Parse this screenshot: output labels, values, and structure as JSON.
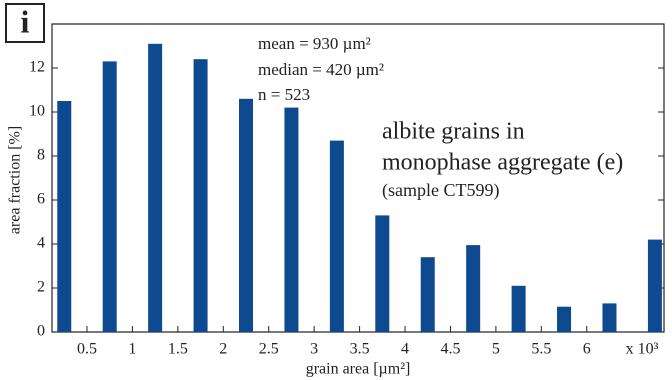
{
  "chart_data": {
    "type": "bar",
    "panel_label": "i",
    "annotations": [
      "mean = 930 µm²",
      "median = 420 µm²",
      "n = 523",
      "albite grains in",
      "monophase aggregate (e)",
      "(sample CT599)"
    ],
    "xlabel": "grain area [µm²]",
    "x_multiplier": "x 10³",
    "ylabel": "area fraction [%]",
    "x": [
      0.25,
      0.75,
      1.25,
      1.75,
      2.25,
      2.75,
      3.25,
      3.75,
      4.25,
      4.75,
      5.25,
      5.75,
      6.25,
      6.75
    ],
    "values": [
      10.5,
      12.3,
      13.1,
      12.4,
      10.6,
      10.2,
      8.7,
      5.3,
      3.4,
      3.95,
      2.1,
      1.15,
      1.3,
      4.2
    ],
    "color": "#0d4a8f",
    "xlim": [
      0.115,
      6.85
    ],
    "ylim": [
      0,
      14
    ],
    "xticks": [
      0.5,
      1,
      1.5,
      2,
      2.5,
      3,
      3.5,
      4,
      4.5,
      5,
      5.5,
      6
    ],
    "yticks": [
      0,
      2,
      4,
      6,
      8,
      10,
      12
    ]
  }
}
